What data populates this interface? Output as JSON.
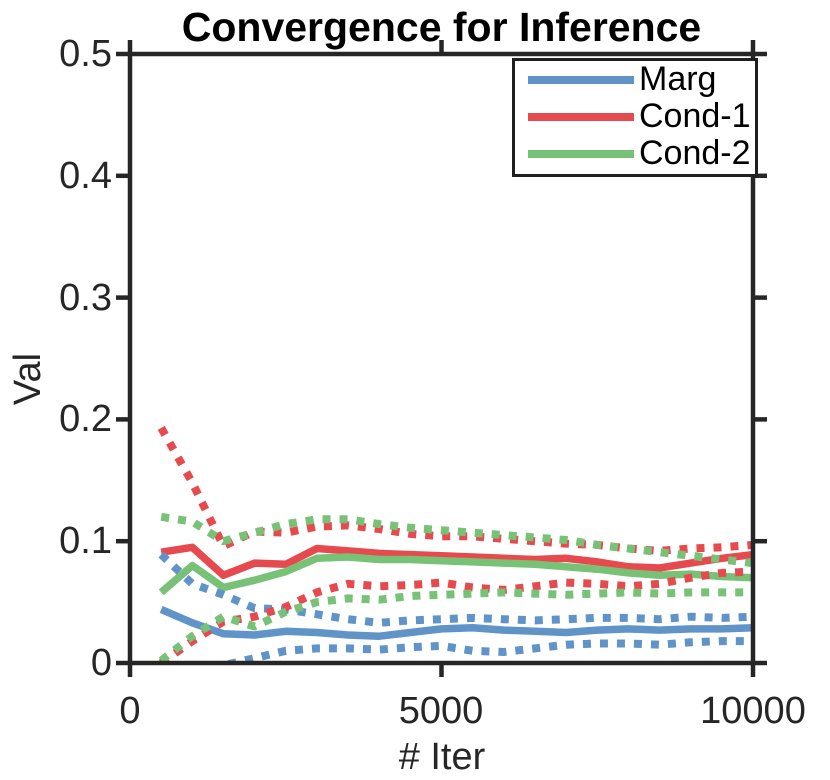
{
  "figure": {
    "title": "Convergence for Inference",
    "xlabel": "# Iter",
    "ylabel": "Val"
  },
  "chart_data": {
    "type": "line",
    "title": "Convergence for Inference",
    "xlabel": "# Iter",
    "ylabel": "Val",
    "xlim": [
      0,
      10000
    ],
    "ylim": [
      0,
      0.5
    ],
    "x_ticks": [
      0,
      5000,
      10000
    ],
    "x_tick_labels": [
      "0",
      "5000",
      "10000"
    ],
    "y_ticks": [
      0,
      0.1,
      0.2,
      0.3,
      0.4,
      0.5
    ],
    "y_tick_labels": [
      "0",
      "0.1",
      "0.2",
      "0.3",
      "0.4",
      "0.5"
    ],
    "grid": false,
    "legend_position": "top-right",
    "axis_color": "#262626",
    "tick_direction": "out",
    "x": [
      500,
      1000,
      1500,
      2000,
      2500,
      3000,
      3500,
      4000,
      4500,
      5000,
      5500,
      6000,
      6500,
      7000,
      7500,
      8000,
      8500,
      9000,
      9500,
      10000
    ],
    "series": [
      {
        "name": "Marg",
        "color": "#6094C8",
        "style": "solid",
        "role": "mean",
        "in_legend": true,
        "values": [
          0.044,
          0.033,
          0.024,
          0.023,
          0.026,
          0.025,
          0.023,
          0.022,
          0.025,
          0.028,
          0.029,
          0.027,
          0.026,
          0.025,
          0.027,
          0.028,
          0.027,
          0.028,
          0.028,
          0.029
        ]
      },
      {
        "name": "Cond-1",
        "color": "#E74A4E",
        "style": "solid",
        "role": "mean",
        "in_legend": true,
        "values": [
          0.091,
          0.095,
          0.072,
          0.082,
          0.081,
          0.094,
          0.092,
          0.09,
          0.089,
          0.088,
          0.087,
          0.086,
          0.085,
          0.086,
          0.083,
          0.079,
          0.078,
          0.082,
          0.086,
          0.089
        ]
      },
      {
        "name": "Cond-2",
        "color": "#77C277",
        "style": "solid",
        "role": "mean",
        "in_legend": true,
        "values": [
          0.058,
          0.08,
          0.062,
          0.068,
          0.075,
          0.086,
          0.087,
          0.085,
          0.085,
          0.084,
          0.083,
          0.082,
          0.081,
          0.079,
          0.077,
          0.074,
          0.072,
          0.073,
          0.071,
          0.07
        ]
      },
      {
        "name": "Marg upper bound",
        "color": "#6094C8",
        "style": "dotted",
        "role": "upper",
        "in_legend": false,
        "values": [
          0.089,
          0.065,
          0.056,
          0.045,
          0.044,
          0.04,
          0.036,
          0.033,
          0.035,
          0.036,
          0.037,
          0.036,
          0.035,
          0.036,
          0.037,
          0.037,
          0.036,
          0.038,
          0.037,
          0.038
        ]
      },
      {
        "name": "Marg lower bound",
        "color": "#6094C8",
        "style": "dotted",
        "role": "lower",
        "in_legend": false,
        "values": [
          -0.008,
          -0.006,
          -0.002,
          0.004,
          0.01,
          0.012,
          0.012,
          0.011,
          0.013,
          0.014,
          0.01,
          0.009,
          0.012,
          0.015,
          0.016,
          0.016,
          0.015,
          0.017,
          0.018,
          0.018
        ]
      },
      {
        "name": "Cond-1 upper bound",
        "color": "#E74A4E",
        "style": "dotted",
        "role": "upper",
        "in_legend": false,
        "values": [
          0.193,
          0.148,
          0.096,
          0.108,
          0.107,
          0.112,
          0.113,
          0.11,
          0.106,
          0.104,
          0.104,
          0.102,
          0.1,
          0.098,
          0.097,
          0.094,
          0.092,
          0.094,
          0.095,
          0.097
        ]
      },
      {
        "name": "Cond-1 lower bound",
        "color": "#E74A4E",
        "style": "dotted",
        "role": "lower",
        "in_legend": false,
        "values": [
          0.0,
          0.018,
          0.034,
          0.038,
          0.046,
          0.058,
          0.065,
          0.063,
          0.064,
          0.066,
          0.062,
          0.06,
          0.063,
          0.066,
          0.065,
          0.063,
          0.065,
          0.07,
          0.074,
          0.075
        ]
      },
      {
        "name": "Cond-2 upper bound",
        "color": "#77C277",
        "style": "dotted",
        "role": "upper",
        "in_legend": false,
        "values": [
          0.12,
          0.116,
          0.1,
          0.107,
          0.114,
          0.118,
          0.118,
          0.114,
          0.111,
          0.109,
          0.107,
          0.105,
          0.103,
          0.101,
          0.097,
          0.094,
          0.091,
          0.088,
          0.085,
          0.082
        ]
      },
      {
        "name": "Cond-2 lower bound",
        "color": "#77C277",
        "style": "dotted",
        "role": "lower",
        "in_legend": false,
        "values": [
          0.002,
          0.022,
          0.038,
          0.03,
          0.042,
          0.05,
          0.053,
          0.052,
          0.055,
          0.056,
          0.057,
          0.058,
          0.057,
          0.056,
          0.057,
          0.058,
          0.057,
          0.058,
          0.058,
          0.058
        ]
      }
    ]
  }
}
